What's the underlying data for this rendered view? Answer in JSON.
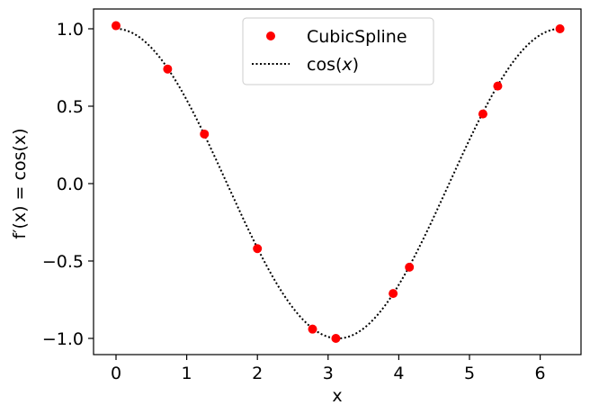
{
  "chart_data": {
    "type": "scatter",
    "xlabel": "x",
    "ylabel": "f′(x) = cos(x)",
    "xlim": [
      -0.31,
      6.6
    ],
    "ylim": [
      -1.1,
      1.1
    ],
    "x_ticks": [
      0,
      1,
      2,
      3,
      4,
      5,
      6
    ],
    "x_tick_labels": [
      "0",
      "1",
      "2",
      "3",
      "4",
      "5",
      "6"
    ],
    "y_ticks": [
      1.0,
      0.5,
      0.0,
      -0.5,
      -1.0
    ],
    "y_tick_labels": [
      "1.0",
      "0.5",
      "0.0",
      "−0.5",
      "−1.0"
    ],
    "grid": false,
    "legend_position": "top-center",
    "series": [
      {
        "name": "CubicSpline",
        "style": "markers",
        "color": "#ff0000",
        "x": [
          0.0,
          0.73,
          1.25,
          2.0,
          2.78,
          3.11,
          3.92,
          4.15,
          5.19,
          5.4,
          6.28
        ],
        "y": [
          1.02,
          0.74,
          0.32,
          -0.42,
          -0.94,
          -1.0,
          -0.71,
          -0.54,
          0.45,
          0.63,
          1.0
        ]
      },
      {
        "name": "cos(x)",
        "style": "dotted-line",
        "color": "#000000",
        "function": "cos",
        "x_range": [
          0,
          6.2832
        ]
      }
    ]
  },
  "legend": {
    "entries": [
      {
        "label_main": "CubicSpline",
        "label_prefix": "",
        "label_italic": "",
        "label_suffix": ""
      },
      {
        "label_main": "",
        "label_prefix": "cos(",
        "label_italic": "x",
        "label_suffix": ")"
      }
    ]
  }
}
